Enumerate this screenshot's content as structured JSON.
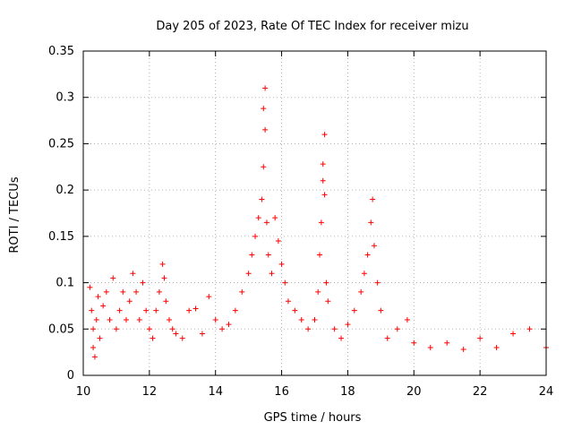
{
  "chart_data": {
    "type": "scatter",
    "title": "Day 205 of 2023, Rate Of TEC Index for receiver mizu",
    "xlabel": "GPS time / hours",
    "ylabel": "ROTI / TECUs",
    "xlim": [
      10,
      24
    ],
    "ylim": [
      0,
      0.35
    ],
    "x_ticks": [
      10,
      12,
      14,
      16,
      18,
      20,
      22,
      24
    ],
    "x_tick_labels": [
      "10",
      "12",
      "14",
      "16",
      "18",
      "20",
      "22",
      "24"
    ],
    "y_ticks": [
      0,
      0.05,
      0.1,
      0.15,
      0.2,
      0.25,
      0.3,
      0.35
    ],
    "y_tick_labels": [
      "0",
      "0.05",
      "0.1",
      "0.15",
      "0.2",
      "0.25",
      "0.3",
      "0.35"
    ],
    "grid": true,
    "marker": "+",
    "color": "#ff0000",
    "series": [
      {
        "name": "ROTI",
        "points": [
          [
            10.2,
            0.095
          ],
          [
            10.25,
            0.07
          ],
          [
            10.3,
            0.05
          ],
          [
            10.3,
            0.03
          ],
          [
            10.35,
            0.02
          ],
          [
            10.4,
            0.06
          ],
          [
            10.45,
            0.085
          ],
          [
            10.5,
            0.04
          ],
          [
            10.6,
            0.075
          ],
          [
            10.7,
            0.09
          ],
          [
            10.8,
            0.06
          ],
          [
            10.9,
            0.105
          ],
          [
            11.0,
            0.05
          ],
          [
            11.1,
            0.07
          ],
          [
            11.2,
            0.09
          ],
          [
            11.3,
            0.06
          ],
          [
            11.4,
            0.08
          ],
          [
            11.5,
            0.11
          ],
          [
            11.6,
            0.09
          ],
          [
            11.7,
            0.06
          ],
          [
            11.8,
            0.1
          ],
          [
            11.9,
            0.07
          ],
          [
            12.0,
            0.05
          ],
          [
            12.1,
            0.04
          ],
          [
            12.2,
            0.07
          ],
          [
            12.3,
            0.09
          ],
          [
            12.4,
            0.12
          ],
          [
            12.45,
            0.105
          ],
          [
            12.5,
            0.08
          ],
          [
            12.6,
            0.06
          ],
          [
            12.7,
            0.05
          ],
          [
            12.8,
            0.045
          ],
          [
            13.0,
            0.04
          ],
          [
            13.2,
            0.07
          ],
          [
            13.4,
            0.072
          ],
          [
            13.6,
            0.045
          ],
          [
            13.8,
            0.085
          ],
          [
            14.0,
            0.06
          ],
          [
            14.2,
            0.05
          ],
          [
            14.4,
            0.055
          ],
          [
            14.6,
            0.07
          ],
          [
            14.8,
            0.09
          ],
          [
            15.0,
            0.11
          ],
          [
            15.1,
            0.13
          ],
          [
            15.2,
            0.15
          ],
          [
            15.3,
            0.17
          ],
          [
            15.4,
            0.19
          ],
          [
            15.45,
            0.225
          ],
          [
            15.5,
            0.265
          ],
          [
            15.45,
            0.288
          ],
          [
            15.5,
            0.31
          ],
          [
            15.55,
            0.165
          ],
          [
            15.6,
            0.13
          ],
          [
            15.7,
            0.11
          ],
          [
            15.8,
            0.17
          ],
          [
            15.9,
            0.145
          ],
          [
            16.0,
            0.12
          ],
          [
            16.1,
            0.1
          ],
          [
            16.2,
            0.08
          ],
          [
            16.4,
            0.07
          ],
          [
            16.6,
            0.06
          ],
          [
            16.8,
            0.05
          ],
          [
            17.0,
            0.06
          ],
          [
            17.1,
            0.09
          ],
          [
            17.15,
            0.13
          ],
          [
            17.2,
            0.165
          ],
          [
            17.25,
            0.21
          ],
          [
            17.25,
            0.228
          ],
          [
            17.3,
            0.26
          ],
          [
            17.3,
            0.195
          ],
          [
            17.35,
            0.1
          ],
          [
            17.4,
            0.08
          ],
          [
            17.6,
            0.05
          ],
          [
            17.8,
            0.04
          ],
          [
            18.0,
            0.055
          ],
          [
            18.2,
            0.07
          ],
          [
            18.4,
            0.09
          ],
          [
            18.5,
            0.11
          ],
          [
            18.6,
            0.13
          ],
          [
            18.7,
            0.165
          ],
          [
            18.75,
            0.19
          ],
          [
            18.8,
            0.14
          ],
          [
            18.9,
            0.1
          ],
          [
            19.0,
            0.07
          ],
          [
            19.2,
            0.04
          ],
          [
            19.5,
            0.05
          ],
          [
            19.8,
            0.06
          ],
          [
            20.0,
            0.035
          ],
          [
            20.5,
            0.03
          ],
          [
            21.0,
            0.035
          ],
          [
            21.5,
            0.028
          ],
          [
            22.0,
            0.04
          ],
          [
            22.5,
            0.03
          ],
          [
            23.0,
            0.045
          ],
          [
            23.5,
            0.05
          ],
          [
            24.0,
            0.03
          ]
        ]
      }
    ]
  }
}
